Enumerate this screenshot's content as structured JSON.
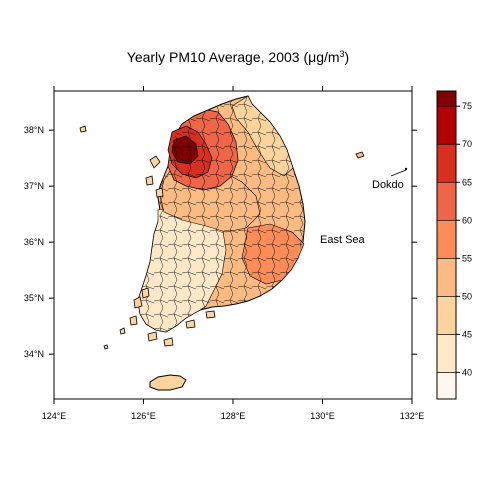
{
  "chart_data": {
    "type": "choropleth",
    "title_main": "Yearly PM10 Average, 2003 (",
    "title_mu": "μ",
    "title_unit": "g/m",
    "title_exp": "3",
    "title_close": ")",
    "x_ticks": [
      "124°E",
      "126°E",
      "128°E",
      "130°E",
      "132°E"
    ],
    "y_ticks": [
      "34°N",
      "35°N",
      "36°N",
      "37°N",
      "38°N"
    ],
    "xlim": [
      124,
      132
    ],
    "ylim": [
      33.2,
      38.7
    ],
    "annotations": {
      "sea": "East Sea",
      "island": "Dokdo"
    },
    "legend": {
      "range": [
        36.5,
        77
      ],
      "breaks": [
        36.5,
        40,
        45,
        50,
        55,
        60,
        65,
        70,
        75,
        77
      ],
      "labels": [
        "40",
        "45",
        "50",
        "55",
        "60",
        "65",
        "70",
        "75"
      ],
      "colors": [
        "#FFF7EC",
        "#FEE8C8",
        "#FDD49E",
        "#FDBB84",
        "#FC8D59",
        "#EF6548",
        "#D7301F",
        "#B30000",
        "#7F0000"
      ]
    }
  }
}
